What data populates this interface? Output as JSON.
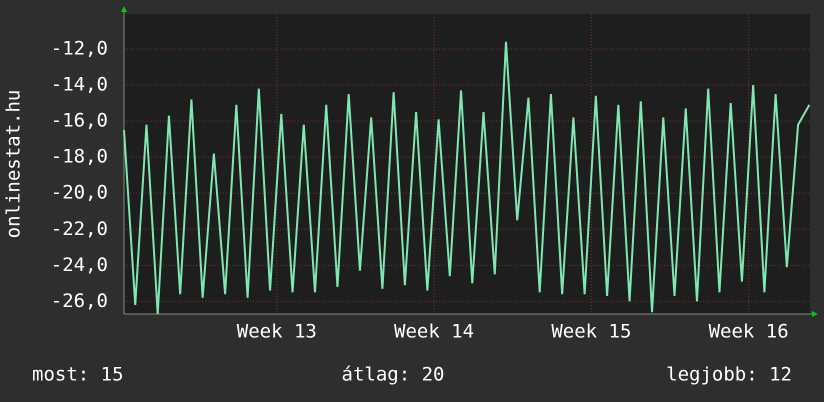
{
  "chart_data": {
    "type": "line",
    "y_label": "onlinestat.hu",
    "x": [
      0,
      0.5,
      1,
      1.5,
      2,
      2.5,
      3,
      3.5,
      4,
      4.5,
      5,
      5.5,
      6,
      6.5,
      7,
      7.5,
      8,
      8.5,
      9,
      9.5,
      10,
      10.5,
      11,
      11.5,
      12,
      12.5,
      13,
      13.5,
      14,
      14.5,
      15,
      15.5,
      16,
      16.5,
      17,
      17.5,
      18,
      18.5,
      19,
      19.5,
      20,
      20.5,
      21,
      21.5,
      22,
      22.5,
      23,
      23.5,
      24,
      24.5,
      25,
      25.5,
      26,
      26.5,
      27,
      27.5,
      28,
      28.5,
      29,
      29.5,
      30,
      30.5
    ],
    "series": [
      {
        "color": "#7fe8ae",
        "values": [
          -16.5,
          -26.2,
          -16.2,
          -26.7,
          -15.7,
          -25.6,
          -14.8,
          -25.8,
          -17.8,
          -25.6,
          -15.1,
          -25.8,
          -14.2,
          -25.4,
          -15.6,
          -25.5,
          -16.2,
          -25.5,
          -15.1,
          -25.2,
          -14.5,
          -24.3,
          -15.8,
          -25.3,
          -14.4,
          -25.1,
          -15.5,
          -25.4,
          -15.9,
          -24.6,
          -14.3,
          -25.0,
          -15.5,
          -24.5,
          -11.6,
          -21.5,
          -14.7,
          -25.5,
          -14.5,
          -25.6,
          -15.8,
          -25.6,
          -14.6,
          -25.7,
          -15.1,
          -26.0,
          -14.9,
          -26.6,
          -15.8,
          -25.7,
          -15.3,
          -26.0,
          -14.2,
          -25.5,
          -15.0,
          -24.9,
          -14.0,
          -25.5,
          -14.5,
          -24.1,
          -16.2,
          -15.1
        ]
      }
    ],
    "xlim": [
      0,
      30.53
    ],
    "xticks": [
      {
        "value": 6.8,
        "label": "Week 13"
      },
      {
        "value": 13.8,
        "label": "Week 14"
      },
      {
        "value": 20.8,
        "label": "Week 15"
      },
      {
        "value": 27.8,
        "label": "Week 16"
      }
    ],
    "ylim": [
      -26.7,
      -10.06
    ],
    "yticks": [
      {
        "value": -26,
        "label": "-26,0"
      },
      {
        "value": -24,
        "label": "-24,0"
      },
      {
        "value": -22,
        "label": "-22,0"
      },
      {
        "value": -20,
        "label": "-20,0"
      },
      {
        "value": -18,
        "label": "-18,0"
      },
      {
        "value": -16,
        "label": "-16,0"
      },
      {
        "value": -14,
        "label": "-14,0"
      },
      {
        "value": -12,
        "label": "-12,0"
      }
    ],
    "grid": true,
    "annotations": [
      "most: 15",
      "átlag: 20",
      "legjobb: 12"
    ]
  }
}
